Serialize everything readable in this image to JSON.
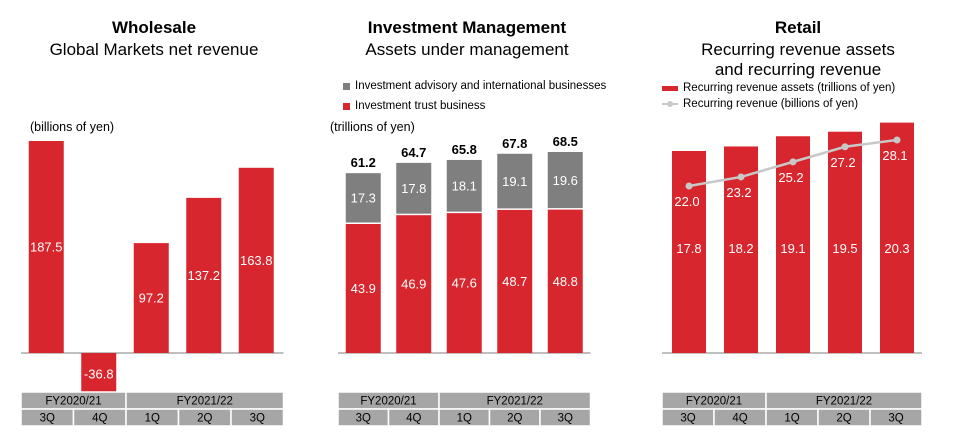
{
  "colors": {
    "red": "#d7262d",
    "grey": "#7f7f7f",
    "line": "#c8c8c8",
    "table": "#a6a6a6"
  },
  "chart_data": [
    {
      "type": "bar",
      "title": "Wholesale",
      "subtitle": "Global Markets net revenue",
      "unit_label": "(billions of yen)",
      "categories": [
        "3Q",
        "4Q",
        "1Q",
        "2Q",
        "3Q"
      ],
      "category_groups": [
        {
          "label": "FY2020/21",
          "span": 2
        },
        {
          "label": "FY2021/22",
          "span": 3
        }
      ],
      "series": [
        {
          "values": [
            187.5,
            -36.8,
            97.2,
            137.2,
            163.8
          ]
        }
      ],
      "value_labels": [
        "187.5",
        "-36.8",
        "97.2",
        "137.2",
        "163.8"
      ]
    },
    {
      "type": "bar",
      "stacked": true,
      "title": "Investment Management",
      "subtitle": "Assets under management",
      "unit_label": "(trillions of yen)",
      "legend": "top-left",
      "categories": [
        "3Q",
        "4Q",
        "1Q",
        "2Q",
        "3Q"
      ],
      "category_groups": [
        {
          "label": "FY2020/21",
          "span": 2
        },
        {
          "label": "FY2021/22",
          "span": 3
        }
      ],
      "series": [
        {
          "name": "Investment trust business",
          "color": "#d7262d",
          "values": [
            43.9,
            46.9,
            47.6,
            48.7,
            48.8
          ]
        },
        {
          "name": "Investment advisory and international businesses",
          "color": "#7f7f7f",
          "values": [
            17.3,
            17.8,
            18.1,
            19.1,
            19.6
          ]
        }
      ],
      "value_labels": {
        "bottom": [
          "43.9",
          "46.9",
          "47.6",
          "48.7",
          "48.8"
        ],
        "top": [
          "17.3",
          "17.8",
          "18.1",
          "19.1",
          "19.6"
        ]
      },
      "totals": [
        "61.2",
        "64.7",
        "65.8",
        "67.8",
        "68.5"
      ]
    },
    {
      "type": "bar",
      "title": "Retail",
      "subtitle_lines": [
        "Recurring revenue assets",
        "and recurring revenue"
      ],
      "legend": "top-left",
      "categories": [
        "3Q",
        "4Q",
        "1Q",
        "2Q",
        "3Q"
      ],
      "category_groups": [
        {
          "label": "FY2020/21",
          "span": 2
        },
        {
          "label": "FY2021/22",
          "span": 3
        }
      ],
      "series": [
        {
          "name": "Recurring revenue assets (trillions of yen)",
          "kind": "bar",
          "color": "#d7262d",
          "values": [
            17.8,
            18.2,
            19.1,
            19.5,
            20.3
          ]
        },
        {
          "name": "Recurring revenue (billions of yen)",
          "kind": "line",
          "color": "#c8c8c8",
          "values": [
            22.0,
            23.2,
            25.2,
            27.2,
            28.1
          ]
        }
      ],
      "value_labels": {
        "bars": [
          "17.8",
          "18.2",
          "19.1",
          "19.5",
          "20.3"
        ],
        "line": [
          "22.0",
          "23.2",
          "25.2",
          "27.2",
          "28.1"
        ]
      }
    }
  ]
}
